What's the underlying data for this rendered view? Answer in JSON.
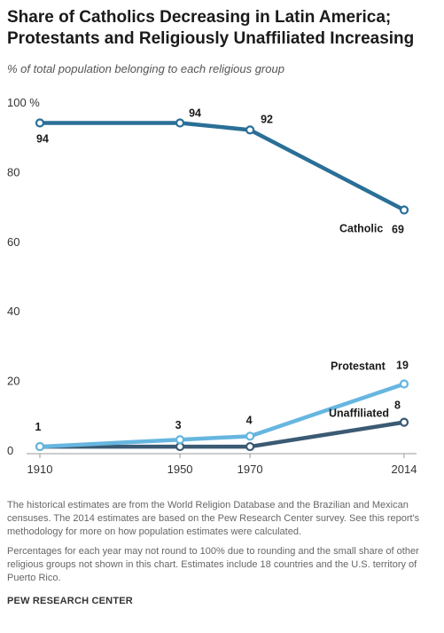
{
  "header": {
    "title_line1": "Share of Catholics Decreasing in Latin America;",
    "title_line2": "Protestants and Religiously Unaffiliated Increasing",
    "subtitle": "% of total population belonging to each religious group"
  },
  "chart_data": {
    "type": "line",
    "x": [
      1910,
      1950,
      1970,
      2014
    ],
    "ylim": [
      0,
      100
    ],
    "yticks": [
      0,
      20,
      40,
      60,
      80,
      100
    ],
    "ytick_labels": [
      "0",
      "20",
      "40",
      "60",
      "80",
      "100 %"
    ],
    "series": [
      {
        "name": "Catholic",
        "values": [
          94,
          94,
          92,
          69
        ],
        "color": "#2a6f97"
      },
      {
        "name": "Protestant",
        "values": [
          1,
          3,
          4,
          19
        ],
        "color": "#66b6e0"
      },
      {
        "name": "Unaffiliated",
        "values": [
          1,
          1,
          1,
          8
        ],
        "color": "#3b5a73"
      }
    ],
    "data_labels": [
      {
        "series": "Catholic",
        "index": 0,
        "text": "94"
      },
      {
        "series": "Catholic",
        "index": 1,
        "text": "94"
      },
      {
        "series": "Catholic",
        "index": 2,
        "text": "92"
      },
      {
        "series": "Catholic",
        "index": 3,
        "text": "69"
      },
      {
        "series": "Protestant",
        "index": 0,
        "text": "1"
      },
      {
        "series": "Protestant",
        "index": 1,
        "text": "3"
      },
      {
        "series": "Protestant",
        "index": 2,
        "text": "4"
      },
      {
        "series": "Protestant",
        "index": 3,
        "text": "19"
      },
      {
        "series": "Unaffiliated",
        "index": 3,
        "text": "8"
      }
    ],
    "legend": "inline series labels at 2014 end points",
    "grid": false
  },
  "notes": {
    "note1": "The historical estimates are from the World Religion Database and the Brazilian and Mexican censuses. The 2014 estimates are based on the Pew Research Center survey. See this report's methodology for more on how population estimates were calculated.",
    "note2": "Percentages for each year may not round to 100% due to rounding and the small share of other religious groups not shown in this chart. Estimates include 18 countries and the U.S. territory of Puerto Rico."
  },
  "source": "PEW RESEARCH CENTER"
}
